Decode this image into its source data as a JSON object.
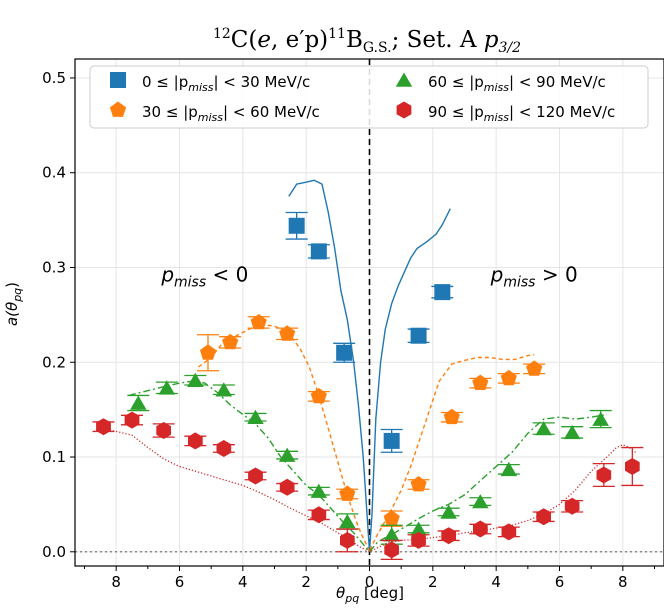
{
  "chart_data": {
    "type": "scatter",
    "title": "12C(e,e′p)11B G.S.; Set. A p3/2",
    "title_parts": {
      "reaction_pre": "12",
      "reaction_main": "C(",
      "vec_e": "e",
      "reaction_mid": ", e′p)",
      "sup_11": "11",
      "nucleus": "B",
      "sub_gs": "G.S.",
      "tail": ";  Set. A ",
      "p": "p",
      "p_sub": "3/2"
    },
    "xlabel": "θpq [deg]",
    "xlabel_parts": {
      "main": "θ",
      "sub": "pq",
      "unit": " [deg]"
    },
    "ylabel": "a(θpq)",
    "ylabel_parts": {
      "pre": "a(θ",
      "sub": "pq",
      "post": ")"
    },
    "xlim": [
      -9.3,
      9.3
    ],
    "ylim": [
      -0.015,
      0.52
    ],
    "x_ticks": [
      -8,
      -6,
      -4,
      -2,
      0,
      2,
      4,
      6,
      8
    ],
    "x_tick_labels": [
      "8",
      "6",
      "4",
      "2",
      "0",
      "2",
      "4",
      "6",
      "8"
    ],
    "y_ticks": [
      0.0,
      0.1,
      0.2,
      0.3,
      0.4,
      0.5
    ],
    "y_tick_labels": [
      "0.0",
      "0.1",
      "0.2",
      "0.3",
      "0.4",
      "0.5"
    ],
    "grid": true,
    "legend_position": "top",
    "annotations": [
      {
        "pre": "p",
        "sub": "miss",
        "post": " < 0",
        "x": -5.2,
        "y": 0.285
      },
      {
        "pre": "p",
        "sub": "miss",
        "post": " > 0",
        "x": 5.2,
        "y": 0.285
      }
    ],
    "series": [
      {
        "name": "0 ≤ |pmiss| < 30 MeV/c",
        "legend": {
          "pre": "0 ≤ |p",
          "sub": "miss",
          "post": "| < 30 MeV/c"
        },
        "marker": "square",
        "color": "#1f77b4",
        "points": [
          {
            "x": -2.3,
            "y": 0.344,
            "err": 0.014
          },
          {
            "x": -1.6,
            "y": 0.317,
            "err": 0.007
          },
          {
            "x": -0.8,
            "y": 0.21,
            "err": 0.01
          },
          {
            "x": 0.7,
            "y": 0.117,
            "err": 0.012
          },
          {
            "x": 1.55,
            "y": 0.228,
            "err": 0.007
          },
          {
            "x": 2.3,
            "y": 0.274,
            "err": 0.006
          }
        ],
        "curve": {
          "style": "solid",
          "x": [
            -2.55,
            -2.3,
            -2.0,
            -1.75,
            -1.5,
            -1.3,
            -1.1,
            -0.9,
            -0.7,
            -0.5,
            -0.35,
            -0.2,
            -0.08,
            0.0,
            0.08,
            0.2,
            0.35,
            0.5,
            0.7,
            0.9,
            1.1,
            1.3,
            1.5,
            1.8,
            2.1,
            2.3,
            2.55
          ],
          "y": [
            0.375,
            0.388,
            0.39,
            0.392,
            0.388,
            0.358,
            0.32,
            0.275,
            0.245,
            0.2,
            0.155,
            0.1,
            0.04,
            0.0,
            0.04,
            0.14,
            0.2,
            0.235,
            0.262,
            0.28,
            0.295,
            0.31,
            0.32,
            0.327,
            0.335,
            0.345,
            0.362
          ]
        }
      },
      {
        "name": "30 ≤ |pmiss| < 60 MeV/c",
        "legend": {
          "pre": "30 ≤ |p",
          "sub": "miss",
          "post": "| < 60 MeV/c"
        },
        "marker": "pentagon",
        "color": "#ff7f0e",
        "points": [
          {
            "x": -5.1,
            "y": 0.21,
            "err": 0.019
          },
          {
            "x": -4.4,
            "y": 0.221,
            "err": 0.006
          },
          {
            "x": -3.5,
            "y": 0.242,
            "err": 0.006
          },
          {
            "x": -2.6,
            "y": 0.23,
            "err": 0.006
          },
          {
            "x": -1.6,
            "y": 0.164,
            "err": 0.005
          },
          {
            "x": -0.7,
            "y": 0.061,
            "err": 0.005
          },
          {
            "x": 0.7,
            "y": 0.035,
            "err": 0.008
          },
          {
            "x": 1.55,
            "y": 0.071,
            "err": 0.005
          },
          {
            "x": 2.6,
            "y": 0.142,
            "err": 0.005
          },
          {
            "x": 3.5,
            "y": 0.178,
            "err": 0.005
          },
          {
            "x": 4.4,
            "y": 0.183,
            "err": 0.005
          },
          {
            "x": 5.2,
            "y": 0.193,
            "err": 0.005
          }
        ],
        "curve": {
          "style": "dashed",
          "x": [
            -5.4,
            -5.0,
            -4.6,
            -4.2,
            -3.8,
            -3.4,
            -3.0,
            -2.6,
            -2.2,
            -1.9,
            -1.6,
            -1.3,
            -1.0,
            -0.7,
            -0.45,
            -0.25,
            -0.1,
            0.0,
            0.1,
            0.25,
            0.45,
            0.7,
            1.0,
            1.3,
            1.6,
            1.9,
            2.2,
            2.6,
            3.0,
            3.4,
            3.8,
            4.2,
            4.6,
            5.0,
            5.2
          ],
          "y": [
            0.195,
            0.205,
            0.222,
            0.228,
            0.235,
            0.24,
            0.238,
            0.232,
            0.215,
            0.195,
            0.165,
            0.13,
            0.095,
            0.06,
            0.035,
            0.018,
            0.008,
            0.0,
            0.008,
            0.018,
            0.03,
            0.045,
            0.065,
            0.09,
            0.12,
            0.15,
            0.18,
            0.198,
            0.202,
            0.205,
            0.205,
            0.203,
            0.203,
            0.207,
            0.208
          ]
        }
      },
      {
        "name": "60 ≤ |pmiss| < 90 MeV/c",
        "legend": {
          "pre": "60 ≤ |p",
          "sub": "miss",
          "post": "| < 90 MeV/c"
        },
        "marker": "triangle",
        "color": "#2ca02c",
        "points": [
          {
            "x": -7.3,
            "y": 0.157,
            "err": 0.008
          },
          {
            "x": -6.4,
            "y": 0.173,
            "err": 0.006
          },
          {
            "x": -5.5,
            "y": 0.181,
            "err": 0.005
          },
          {
            "x": -4.6,
            "y": 0.171,
            "err": 0.005
          },
          {
            "x": -3.6,
            "y": 0.142,
            "err": 0.004
          },
          {
            "x": -2.6,
            "y": 0.102,
            "err": 0.004
          },
          {
            "x": -1.6,
            "y": 0.064,
            "err": 0.004
          },
          {
            "x": -0.7,
            "y": 0.032,
            "err": 0.008
          },
          {
            "x": 0.7,
            "y": 0.018,
            "err": 0.01
          },
          {
            "x": 1.55,
            "y": 0.024,
            "err": 0.004
          },
          {
            "x": 2.5,
            "y": 0.042,
            "err": 0.004
          },
          {
            "x": 3.5,
            "y": 0.053,
            "err": 0.004
          },
          {
            "x": 4.4,
            "y": 0.087,
            "err": 0.005
          },
          {
            "x": 5.5,
            "y": 0.13,
            "err": 0.006
          },
          {
            "x": 6.4,
            "y": 0.126,
            "err": 0.006
          },
          {
            "x": 7.3,
            "y": 0.14,
            "err": 0.009
          }
        ],
        "curve": {
          "style": "dashdot",
          "x": [
            -7.6,
            -7.0,
            -6.4,
            -6.0,
            -5.6,
            -5.2,
            -4.8,
            -4.4,
            -4.0,
            -3.6,
            -3.2,
            -2.8,
            -2.4,
            -2.0,
            -1.6,
            -1.2,
            -0.8,
            -0.5,
            -0.25,
            0.0,
            0.25,
            0.5,
            0.8,
            1.2,
            1.6,
            2.0,
            2.5,
            3.0,
            3.5,
            4.0,
            4.5,
            5.0,
            5.5,
            6.0,
            6.5,
            7.0,
            7.5
          ],
          "y": [
            0.165,
            0.17,
            0.175,
            0.178,
            0.18,
            0.178,
            0.168,
            0.155,
            0.145,
            0.135,
            0.12,
            0.1,
            0.085,
            0.07,
            0.06,
            0.045,
            0.03,
            0.02,
            0.01,
            0.0,
            0.01,
            0.015,
            0.02,
            0.028,
            0.036,
            0.043,
            0.05,
            0.06,
            0.075,
            0.09,
            0.105,
            0.125,
            0.14,
            0.142,
            0.14,
            0.142,
            0.145
          ]
        }
      },
      {
        "name": "90 ≤ |pmiss| < 120 MeV/c",
        "legend": {
          "pre": "90 ≤ |p",
          "sub": "miss",
          "post": "| < 120 MeV/c"
        },
        "marker": "hexagon",
        "color": "#d62728",
        "points": [
          {
            "x": -8.4,
            "y": 0.132,
            "err": 0.005
          },
          {
            "x": -7.5,
            "y": 0.139,
            "err": 0.005
          },
          {
            "x": -6.5,
            "y": 0.128,
            "err": 0.007
          },
          {
            "x": -5.5,
            "y": 0.117,
            "err": 0.005
          },
          {
            "x": -4.6,
            "y": 0.109,
            "err": 0.004
          },
          {
            "x": -3.6,
            "y": 0.08,
            "err": 0.004
          },
          {
            "x": -2.6,
            "y": 0.068,
            "err": 0.004
          },
          {
            "x": -1.6,
            "y": 0.039,
            "err": 0.005
          },
          {
            "x": -0.7,
            "y": 0.012,
            "err": 0.012
          },
          {
            "x": 0.7,
            "y": 0.002,
            "err": 0.01
          },
          {
            "x": 1.55,
            "y": 0.012,
            "err": 0.006
          },
          {
            "x": 2.5,
            "y": 0.017,
            "err": 0.005
          },
          {
            "x": 3.5,
            "y": 0.024,
            "err": 0.005
          },
          {
            "x": 4.4,
            "y": 0.021,
            "err": 0.005
          },
          {
            "x": 5.5,
            "y": 0.037,
            "err": 0.005
          },
          {
            "x": 6.4,
            "y": 0.048,
            "err": 0.006
          },
          {
            "x": 7.4,
            "y": 0.081,
            "err": 0.012
          },
          {
            "x": 8.3,
            "y": 0.09,
            "err": 0.02
          }
        ],
        "curve": {
          "style": "dotted",
          "x": [
            -8.5,
            -8.0,
            -7.5,
            -7.0,
            -6.5,
            -6.0,
            -5.5,
            -5.0,
            -4.5,
            -4.0,
            -3.5,
            -3.0,
            -2.5,
            -2.0,
            -1.5,
            -1.0,
            -0.6,
            -0.3,
            0.0,
            0.3,
            0.6,
            1.0,
            1.5,
            2.0,
            2.5,
            3.0,
            3.5,
            4.0,
            4.5,
            5.0,
            5.5,
            6.0,
            6.5,
            7.0,
            7.5,
            7.8,
            8.0,
            8.2,
            8.4
          ],
          "y": [
            0.13,
            0.127,
            0.123,
            0.11,
            0.098,
            0.09,
            0.085,
            0.08,
            0.075,
            0.07,
            0.063,
            0.055,
            0.046,
            0.038,
            0.03,
            0.02,
            0.012,
            0.005,
            0.0,
            0.005,
            0.01,
            0.012,
            0.013,
            0.015,
            0.017,
            0.02,
            0.022,
            0.025,
            0.028,
            0.033,
            0.04,
            0.05,
            0.065,
            0.085,
            0.1,
            0.11,
            0.113,
            0.11,
            0.105
          ]
        }
      }
    ]
  }
}
